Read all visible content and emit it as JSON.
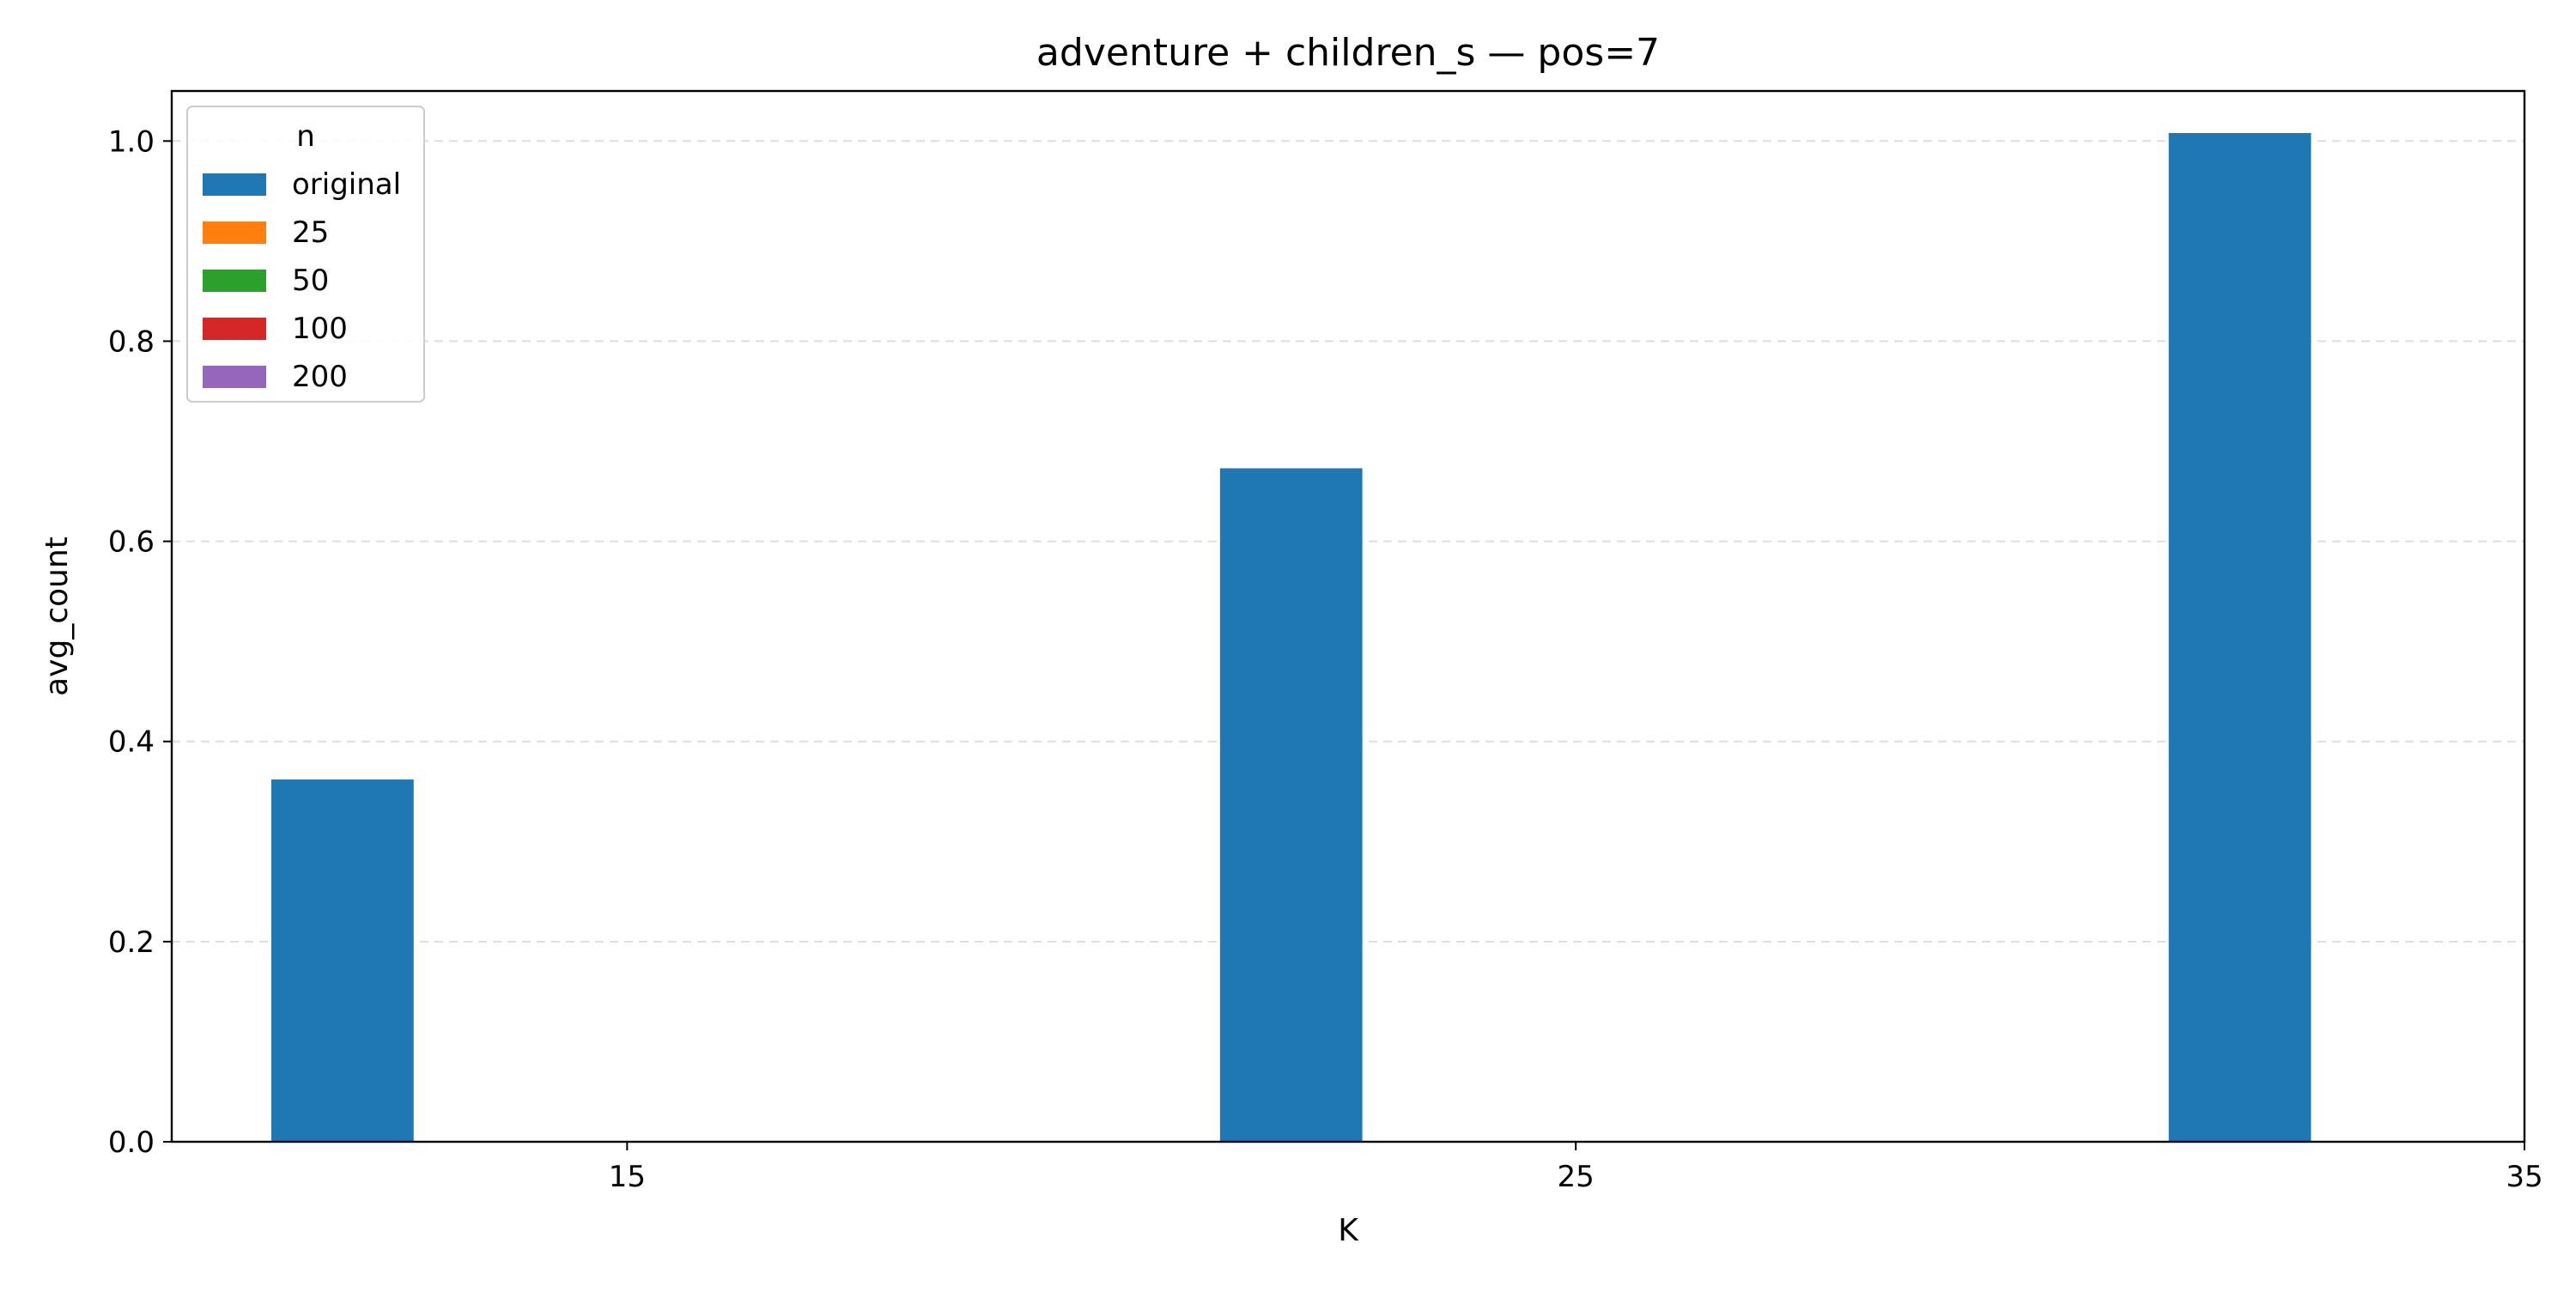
{
  "chart_data": {
    "type": "bar",
    "title": "adventure + children_s — pos=7",
    "xlabel": "K",
    "ylabel": "avg_count",
    "categories": [
      "15",
      "25",
      "35"
    ],
    "x_ticks": [
      "15",
      "25",
      "35"
    ],
    "y_ticks": [
      "0.0",
      "0.2",
      "0.4",
      "0.6",
      "0.8",
      "1.0"
    ],
    "ylim": [
      0,
      1.05
    ],
    "grid": "y dashed",
    "legend": {
      "title": "n",
      "position": "top-left",
      "entries": [
        "original",
        "25",
        "50",
        "100",
        "200"
      ]
    },
    "series": [
      {
        "name": "original",
        "color": "#1f77b4",
        "values": [
          0.362,
          0.673,
          1.008
        ]
      },
      {
        "name": "25",
        "color": "#ff7f0e",
        "values": [
          0,
          0,
          0
        ]
      },
      {
        "name": "50",
        "color": "#2ca02c",
        "values": [
          0,
          0,
          0
        ]
      },
      {
        "name": "100",
        "color": "#d62728",
        "values": [
          0,
          0,
          0
        ]
      },
      {
        "name": "200",
        "color": "#9467bd",
        "values": [
          0,
          0,
          0
        ]
      }
    ]
  }
}
